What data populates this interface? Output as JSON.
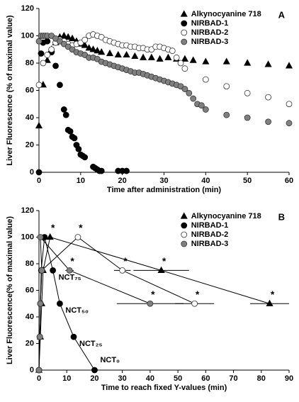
{
  "chart_data": [
    {
      "type": "scatter",
      "panel_label": "A",
      "x_label": "Time after administration (min)",
      "y_label": "Liver Fluorescence (% of maximal value)",
      "xlim": [
        0,
        60
      ],
      "xticks": [
        0,
        10,
        20,
        30,
        40,
        50,
        60
      ],
      "ylim": [
        0,
        120
      ],
      "yticks": [
        0,
        20,
        40,
        60,
        80,
        100,
        120
      ],
      "legend": "upper right",
      "series": [
        {
          "name": "Alkynocyanine 718",
          "marker": "triangle",
          "color": "#000000",
          "x": [
            0,
            1,
            2,
            3,
            4,
            5,
            6,
            7,
            8,
            9,
            10,
            11,
            12,
            13,
            14,
            15,
            17,
            19,
            21,
            23,
            25,
            27,
            29,
            31,
            33,
            35,
            37,
            40,
            45,
            50,
            55,
            60
          ],
          "values": [
            34,
            64,
            82,
            90,
            95,
            99,
            100,
            99,
            98,
            96,
            94,
            93,
            91,
            90,
            89,
            88,
            87,
            86,
            86,
            85,
            84,
            84,
            83,
            84,
            83,
            83,
            82,
            81,
            81,
            80,
            79,
            78
          ]
        },
        {
          "name": "NIRBAD-1",
          "marker": "circle",
          "color": "#000000",
          "x": [
            0,
            0.5,
            1,
            2,
            3,
            4,
            5,
            6,
            6.5,
            7,
            7.5,
            8,
            8.5,
            9,
            9.5,
            10,
            10.5,
            11,
            13,
            13.5,
            14,
            14.5,
            15,
            19,
            20,
            21
          ],
          "values": [
            0,
            87,
            95,
            96,
            88,
            78,
            64,
            46,
            42,
            31,
            30,
            26,
            25,
            20,
            17,
            13,
            12,
            11,
            4,
            3,
            2,
            1,
            1,
            1,
            1,
            1
          ]
        },
        {
          "name": "NIRBAD-2",
          "marker": "circle",
          "color": "#ffffff",
          "x": [
            0,
            1,
            2,
            3,
            4,
            5,
            6,
            7,
            8,
            9,
            10,
            11,
            12,
            13,
            14,
            15,
            16,
            17,
            18,
            19,
            20,
            21,
            22,
            23,
            24,
            25,
            26,
            27,
            28,
            29,
            30,
            31,
            32,
            33,
            34,
            35,
            40,
            45,
            50,
            55,
            60
          ],
          "values": [
            64,
            80,
            86,
            90,
            95,
            97,
            96,
            94,
            93,
            94,
            95,
            97,
            100,
            101,
            100,
            99,
            97,
            96,
            95,
            94,
            93,
            93,
            92,
            92,
            91,
            91,
            90,
            90,
            92,
            92,
            91,
            90,
            89,
            84,
            80,
            76,
            68,
            63,
            58,
            55,
            50
          ]
        },
        {
          "name": "NIRBAD-3",
          "marker": "circle",
          "color": "#808080",
          "x": [
            0,
            0.5,
            1,
            1.5,
            2,
            3,
            4,
            5,
            6,
            7,
            8,
            9,
            10,
            11,
            12,
            13,
            14,
            15,
            16,
            17,
            18,
            19,
            20,
            21,
            22,
            23,
            24,
            25,
            26,
            27,
            28,
            29,
            30,
            31,
            32,
            33,
            34,
            35,
            36,
            37,
            38,
            39,
            40,
            45,
            50,
            55,
            60
          ],
          "values": [
            96,
            100,
            100,
            100,
            100,
            100,
            98,
            96,
            94,
            92,
            90,
            88,
            87,
            86,
            84,
            84,
            83,
            81,
            80,
            79,
            78,
            77,
            76,
            75,
            74,
            73,
            73,
            72,
            71,
            70,
            69,
            68,
            67,
            66,
            65,
            64,
            63,
            61,
            58,
            54,
            50,
            49,
            46,
            42,
            40,
            37,
            36
          ]
        }
      ]
    },
    {
      "type": "line",
      "panel_label": "B",
      "x_label": "Time to reach fixed Y-values (min)",
      "y_label": "Liver Fluorescence(% of maximal value)",
      "xlim": [
        0,
        90
      ],
      "xticks": [
        0,
        10,
        20,
        30,
        40,
        50,
        60,
        70,
        80,
        90
      ],
      "ylim": [
        0,
        120
      ],
      "yticks": [
        0,
        20,
        40,
        60,
        80,
        100,
        120
      ],
      "legend": "upper right",
      "series": [
        {
          "name": "Alkynocyanine 718",
          "marker": "triangle",
          "color": "#000000",
          "x": [
            0,
            0.5,
            1,
            1.5,
            4,
            44,
            83
          ],
          "values": [
            0,
            25,
            50,
            75,
            100,
            75,
            50
          ],
          "xerr": [
            null,
            null,
            null,
            null,
            null,
            10,
            7
          ],
          "flags": [
            null,
            null,
            null,
            null,
            "*",
            "*",
            "*"
          ]
        },
        {
          "name": "NIRBAD-1",
          "marker": "circle",
          "color": "#000000",
          "x": [
            0,
            0.3,
            0.5,
            0.8,
            2,
            5,
            7.5,
            12.5,
            20
          ],
          "values": [
            0,
            25,
            50,
            75,
            100,
            75,
            50,
            25,
            0
          ],
          "xerr": [
            null,
            null,
            null,
            null,
            null,
            null,
            1,
            1,
            null
          ],
          "point_labels": [
            null,
            null,
            null,
            null,
            null,
            "NCT₇₅",
            "NCT₅₀",
            "NCT₂₅",
            "NCT₀"
          ]
        },
        {
          "name": "NIRBAD-2",
          "marker": "circle",
          "color": "#ffffff",
          "x": [
            0,
            0.3,
            0.5,
            1,
            14,
            30,
            56
          ],
          "values": [
            0,
            25,
            50,
            75,
            100,
            75,
            50
          ],
          "xerr": [
            null,
            null,
            null,
            null,
            null,
            3,
            7
          ],
          "flags": [
            null,
            null,
            null,
            null,
            "*",
            "*",
            "*"
          ]
        },
        {
          "name": "NIRBAD-3",
          "marker": "circle",
          "color": "#808080",
          "x": [
            0,
            0.3,
            0.5,
            1,
            0.5,
            11,
            40
          ],
          "values": [
            0,
            25,
            50,
            75,
            100,
            75,
            50
          ],
          "xerr": [
            null,
            null,
            null,
            null,
            null,
            1.5,
            12
          ],
          "flags": [
            null,
            null,
            null,
            null,
            null,
            "*",
            "*"
          ]
        }
      ]
    }
  ]
}
